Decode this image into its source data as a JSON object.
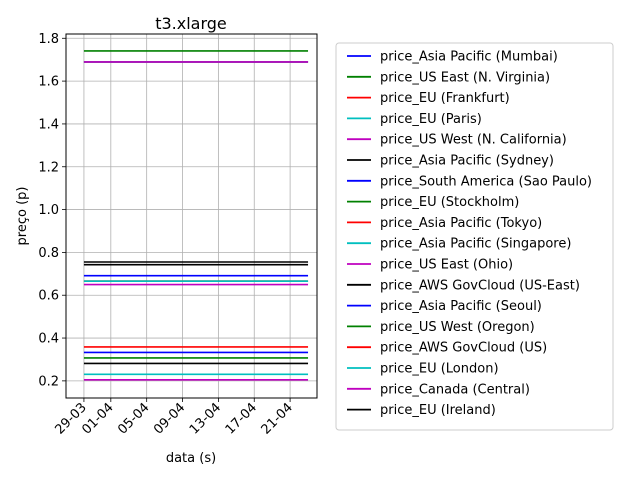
{
  "chart_data": {
    "type": "line",
    "title": "t3.xlarge",
    "xlabel": "data (s)",
    "ylabel": "preço (p)",
    "x_tick_labels": [
      "29-03",
      "01-04",
      "05-04",
      "09-04",
      "13-04",
      "17-04",
      "21-04"
    ],
    "y_ticks": [
      0.2,
      0.4,
      0.6,
      0.8,
      1.0,
      1.2,
      1.4,
      1.6,
      1.8
    ],
    "y_tick_labels": [
      "0.2",
      "0.4",
      "0.6",
      "0.8",
      "1.0",
      "1.2",
      "1.4",
      "1.6",
      "1.8"
    ],
    "ylim": [
      0.12,
      1.82
    ],
    "xlim": [
      "2018-03-27",
      "2018-04-24"
    ],
    "x_start": "2018-03-29",
    "x_end": "2018-04-23",
    "grid": true,
    "legend_position": "right-outside",
    "series": [
      {
        "name": "price_Asia Pacific (Mumbai)",
        "color": "#0000ff",
        "value": 1.6896
      },
      {
        "name": "price_US East (N. Virginia)",
        "color": "#008000",
        "value": 1.7408
      },
      {
        "name": "price_EU (Frankfurt)",
        "color": "#ff0000",
        "value": 1.6896
      },
      {
        "name": "price_EU (Paris)",
        "color": "#00bfbf",
        "value": 1.6896
      },
      {
        "name": "price_US West (N. California)",
        "color": "#bf00bf",
        "value": 1.6896
      },
      {
        "name": "price_Asia Pacific (Sydney)",
        "color": "#000000",
        "value": 0.7552
      },
      {
        "name": "price_South America (Sao Paulo)",
        "color": "#0000ff",
        "value": 0.6912
      },
      {
        "name": "price_EU (Stockholm)",
        "color": "#008000",
        "value": 0.6656
      },
      {
        "name": "price_Asia Pacific (Tokyo)",
        "color": "#ff0000",
        "value": 0.6656
      },
      {
        "name": "price_Asia Pacific (Singapore)",
        "color": "#00bfbf",
        "value": 0.6656
      },
      {
        "name": "price_US East (Ohio)",
        "color": "#bf00bf",
        "value": 0.6496
      },
      {
        "name": "price_AWS GovCloud (US-East)",
        "color": "#000000",
        "value": 0.7424
      },
      {
        "name": "price_Asia Pacific (Seoul)",
        "color": "#0000ff",
        "value": 0.3328
      },
      {
        "name": "price_US West (Oregon)",
        "color": "#008000",
        "value": 0.3072
      },
      {
        "name": "price_AWS GovCloud (US)",
        "color": "#ff0000",
        "value": 0.3584
      },
      {
        "name": "price_EU (London)",
        "color": "#00bfbf",
        "value": 0.2304
      },
      {
        "name": "price_Canada (Central)",
        "color": "#bf00bf",
        "value": 0.2048
      },
      {
        "name": "price_EU (Ireland)",
        "color": "#000000",
        "value": 0.2816
      }
    ]
  }
}
